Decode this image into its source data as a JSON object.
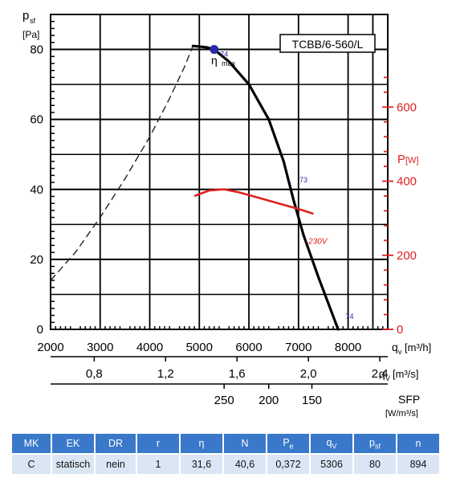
{
  "chart_data": {
    "type": "line",
    "model_label": "TCBB/6-560/L",
    "eta_max_label": "η",
    "eta_max_sub": "max",
    "y_axis": {
      "label": "p",
      "label_sub": "sf",
      "unit": "[Pa]",
      "ticks": [
        "0",
        "20",
        "40",
        "60",
        "80"
      ],
      "ylim": [
        0,
        90
      ]
    },
    "y2_axis": {
      "label": "P",
      "unit": "[W]",
      "ticks": [
        "0",
        "200",
        "400",
        "600"
      ],
      "ylim": [
        0,
        850
      ],
      "color": "#e02020"
    },
    "x_axis": {
      "label": "q",
      "label_sub": "v",
      "unit": "[m³/h]",
      "ticks": [
        "2000",
        "3000",
        "4000",
        "5000",
        "6000",
        "7000",
        "8000"
      ],
      "xlim": [
        2000,
        8800
      ]
    },
    "x2_axis": {
      "label": "q",
      "label_sub": "V",
      "unit": "[m³/s]",
      "ticks": [
        "0,8",
        "1,2",
        "1,6",
        "2,0",
        "2,4"
      ],
      "tick_values": [
        0.8,
        1.2,
        1.6,
        2.0,
        2.4
      ]
    },
    "x3_axis": {
      "label": "SFP",
      "unit": "[W/m³/s]",
      "ticks": [
        "250",
        "200",
        "150"
      ],
      "tick_positions": [
        5500,
        6400,
        7270
      ]
    },
    "series": [
      {
        "x": [
          4870,
          5150,
          5300,
          5600,
          6000,
          6400,
          6700,
          6900,
          7100,
          7400,
          7800
        ],
        "y": [
          81,
          80.6,
          80,
          76.5,
          70,
          60,
          48,
          37,
          27,
          15,
          0
        ],
        "color": "#000000"
      },
      {
        "x": [
          2000,
          2500,
          3000,
          3500,
          4000,
          4400,
          4700,
          4870
        ],
        "y": [
          14,
          22,
          32,
          43,
          55,
          66,
          75,
          81
        ],
        "color": "#222222"
      },
      {
        "x": [
          4900,
          5200,
          5500,
          5800,
          6200,
          6600,
          7000,
          7300
        ],
        "y2": [
          360,
          375,
          378,
          370,
          355,
          340,
          325,
          312
        ],
        "color": "#e02020"
      }
    ],
    "curve_labels": [
      {
        "text": "74",
        "x": 5420,
        "y": 78
      },
      {
        "text": "73",
        "x": 7020,
        "y": 42
      },
      {
        "text": "74",
        "x": 7950,
        "y": 3
      },
      {
        "text": "230V",
        "x": 7200,
        "y": 24.5
      }
    ],
    "eta_max_point": {
      "x": 5300,
      "y": 80,
      "color": "#2b2ba8"
    },
    "grid": true
  },
  "table": {
    "headers": [
      "MK",
      "EK",
      "DR",
      "r",
      "η",
      "N",
      "P",
      "q",
      "p",
      "n"
    ],
    "header_subs": [
      "",
      "",
      "",
      "",
      "",
      "",
      "e",
      "V",
      "sf",
      ""
    ],
    "values": [
      "C",
      "statisch",
      "nein",
      "1",
      "31,6",
      "40,6",
      "0,372",
      "5306",
      "80",
      "894"
    ]
  }
}
